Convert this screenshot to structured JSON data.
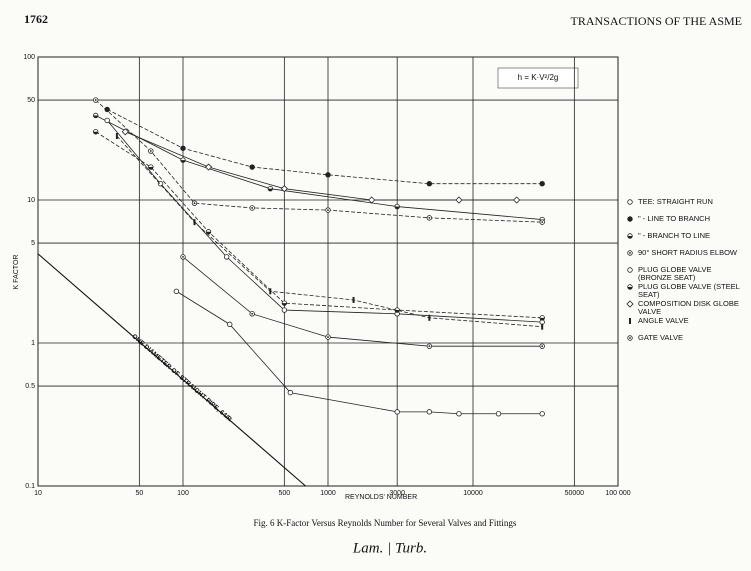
{
  "page_header": {
    "page_number": "1762",
    "journal": "TRANSACTIONS OF THE ASME"
  },
  "chart_data": {
    "type": "scatter-line",
    "caption": "Fig. 6  K-Factor Versus Reynolds Number for Several Valves and Fittings",
    "x_label": "REYNOLDS' NUMBER",
    "y_label": "K FACTOR",
    "formula": "h = K·V²/2g",
    "log_x": true,
    "log_y": true,
    "grid": true,
    "xlim": [
      10,
      100000
    ],
    "ylim": [
      0.1,
      100
    ],
    "xticks": [
      10,
      50,
      100,
      500,
      1000,
      3000,
      10000,
      50000,
      {
        "value": 100000,
        "label": "100 000"
      }
    ],
    "yticks": [
      100,
      50,
      10,
      5,
      1,
      0.5,
      0.1
    ],
    "reference_line": {
      "label": "ONE DIAMETER OF STRAIGHT PIPE, 64/R",
      "x": [
        10,
        700
      ],
      "values": [
        4.2,
        0.1
      ]
    },
    "series": [
      {
        "name": "TEE: STRAIGHT RUN",
        "marker": "open-circle",
        "color": "#222",
        "x": [
          90,
          210,
          550,
          3000,
          5000,
          8000,
          15000,
          30000
        ],
        "values": [
          2.3,
          1.35,
          0.45,
          0.33,
          0.33,
          0.32,
          0.32,
          0.32
        ]
      },
      {
        "name": "\" - LINE TO BRANCH",
        "marker": "filled-circle",
        "color": "#222",
        "x": [
          30,
          100,
          300,
          1000,
          5000,
          30000
        ],
        "values": [
          43,
          23,
          17,
          15,
          13,
          13
        ]
      },
      {
        "name": "\" - BRANCH TO LINE",
        "marker": "half-circle",
        "color": "#222",
        "x": [
          25,
          100,
          400,
          3000,
          30000
        ],
        "values": [
          39,
          19,
          12,
          9,
          7.3
        ]
      },
      {
        "name": "90° SHORT RADIUS ELBOW",
        "marker": "circle-dot",
        "color": "#222",
        "x": [
          25,
          60,
          120,
          300,
          1000,
          5000,
          30000
        ],
        "values": [
          50,
          22,
          9.5,
          8.8,
          8.5,
          7.5,
          7
        ]
      },
      {
        "name": "PLUG GLOBE VALVE (BRONZE SEAT)",
        "marker": "open-circle",
        "color": "#222",
        "x": [
          30,
          70,
          200,
          500,
          3000,
          30000
        ],
        "values": [
          36,
          13,
          4,
          1.7,
          1.6,
          1.4
        ]
      },
      {
        "name": "PLUG GLOBE VALVE (STEEL SEAT)",
        "marker": "half-circle",
        "color": "#222",
        "x": [
          25,
          60,
          150,
          500,
          3000,
          30000
        ],
        "values": [
          30,
          17,
          6,
          1.9,
          1.7,
          1.5
        ]
      },
      {
        "name": "COMPOSITION DISK GLOBE VALVE",
        "marker": "diamond",
        "color": "#222",
        "x": [
          40,
          150,
          500,
          2000,
          8000,
          20000
        ],
        "values": [
          30,
          17,
          12,
          10,
          10,
          10
        ]
      },
      {
        "name": "ANGLE VALVE",
        "marker": "bar",
        "color": "#222",
        "x": [
          35,
          120,
          400,
          1500,
          5000,
          30000
        ],
        "values": [
          28,
          7,
          2.3,
          2,
          1.5,
          1.3
        ]
      },
      {
        "name": "GATE VALVE",
        "marker": "circle-dot",
        "color": "#222",
        "x": [
          100,
          300,
          1000,
          5000,
          30000
        ],
        "values": [
          4,
          1.6,
          1.1,
          0.95,
          0.95
        ]
      }
    ]
  },
  "handwritten_note": "Lam. | Turb."
}
